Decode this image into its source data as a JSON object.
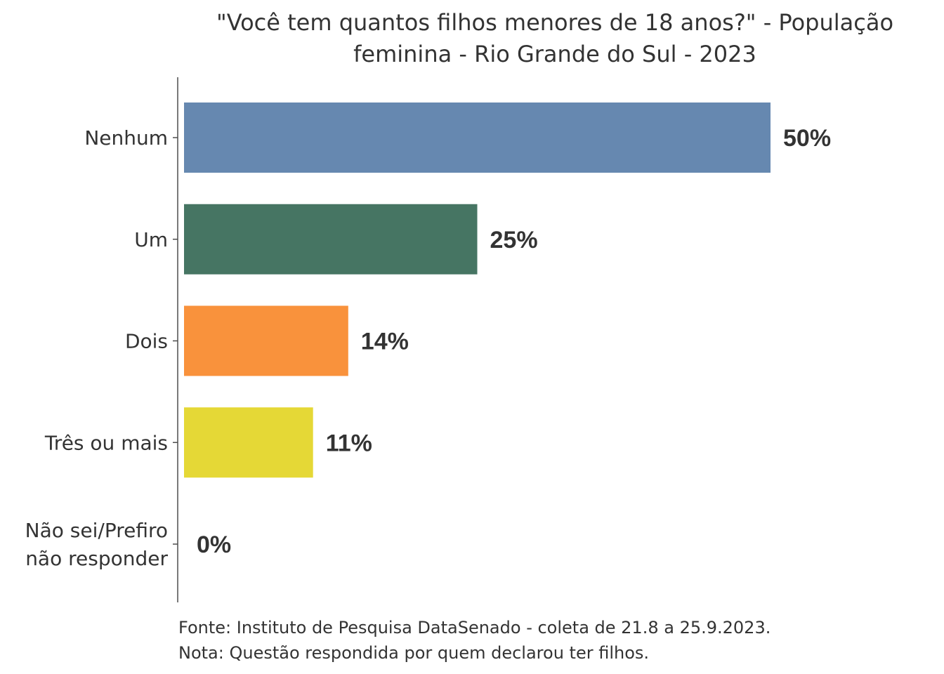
{
  "chart_data": {
    "type": "bar",
    "orientation": "horizontal",
    "title_lines": [
      "\"Você tem quantos filhos menores de 18 anos?\" - População",
      "feminina - Rio Grande do Sul - 2023"
    ],
    "categories": [
      [
        "Nenhum"
      ],
      [
        "Um"
      ],
      [
        "Dois"
      ],
      [
        "Três ou mais"
      ],
      [
        "Não sei/Prefiro",
        "não responder"
      ]
    ],
    "values": [
      50,
      25,
      14,
      11,
      0
    ],
    "value_labels": [
      "50%",
      "25%",
      "14%",
      "11%",
      "0%"
    ],
    "colors": [
      "#6688b0",
      "#467563",
      "#f9923c",
      "#e5d836",
      "#8a3f7f"
    ],
    "xlim": [
      0,
      50
    ],
    "grid": false,
    "legend": "none",
    "caption_lines": [
      "Fonte: Instituto de Pesquisa DataSenado - coleta de 21.8 a 25.9.2023.",
      "Nota: Questão respondida por quem declarou ter filhos."
    ]
  }
}
